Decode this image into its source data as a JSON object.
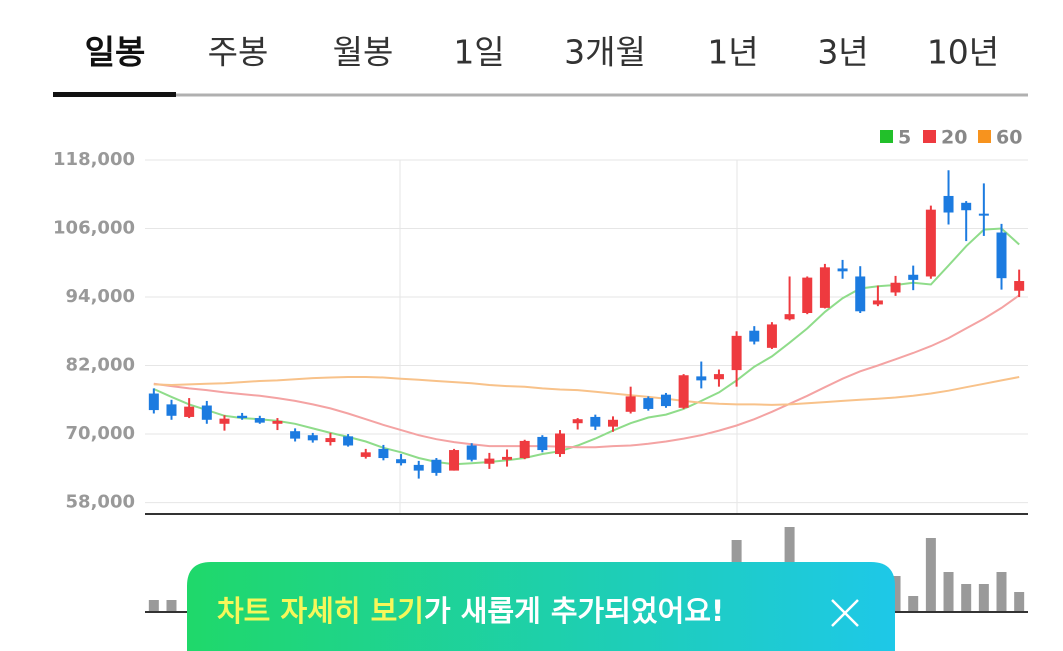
{
  "tabs": [
    "일봉",
    "주봉",
    "월봉",
    "1일",
    "3개월",
    "1년",
    "3년",
    "10년"
  ],
  "chart_data": {
    "type": "candlestick",
    "ylim": [
      56000,
      121500
    ],
    "yticks": [
      {
        "value": 118000,
        "label": "118,000"
      },
      {
        "value": 106000,
        "label": "106,000"
      },
      {
        "value": 94000,
        "label": "94,000"
      },
      {
        "value": 82000,
        "label": "82,000"
      },
      {
        "value": 70000,
        "label": "70,000"
      },
      {
        "value": 58000,
        "label": "58,000"
      }
    ],
    "grid": true,
    "legend": "top-right",
    "up_color": "#ee3a3f",
    "down_color": "#1c7be0",
    "volume_color": "#9a9a9a",
    "candles": {
      "open": [
        77100,
        75200,
        73000,
        75000,
        71800,
        73200,
        72800,
        71800,
        70500,
        69800,
        68600,
        69600,
        66000,
        67400,
        65600,
        64600,
        65500,
        63600,
        68000,
        64800,
        65500,
        65800,
        69500,
        66500,
        71900,
        73000,
        71300,
        73900,
        76300,
        76900,
        74600,
        80100,
        79600,
        81200,
        88100,
        85100,
        90100,
        91200,
        92100,
        99000,
        97600,
        92700,
        94800,
        97900,
        97600,
        111700,
        110500,
        108600,
        105300,
        95100
      ],
      "high": [
        78000,
        76000,
        76300,
        75800,
        73300,
        73700,
        73200,
        72800,
        71000,
        70200,
        70200,
        70000,
        67400,
        68100,
        66500,
        65300,
        65800,
        67400,
        68400,
        66700,
        67300,
        69000,
        69800,
        70700,
        72800,
        73400,
        73100,
        78300,
        76600,
        77200,
        80500,
        82700,
        81300,
        88000,
        88900,
        89600,
        97600,
        97600,
        99800,
        100500,
        99400,
        96000,
        97700,
        99500,
        110000,
        116200,
        110800,
        113900,
        106800,
        98800
      ],
      "low": [
        73600,
        72500,
        72800,
        71800,
        70600,
        72500,
        71800,
        70700,
        68700,
        68500,
        68000,
        67800,
        65700,
        65400,
        64500,
        62200,
        62700,
        63600,
        65200,
        63900,
        64300,
        65600,
        66800,
        66000,
        70800,
        70700,
        70400,
        73600,
        74100,
        74600,
        74400,
        78000,
        78300,
        78300,
        85700,
        84900,
        89900,
        91000,
        92000,
        97200,
        91200,
        92400,
        94200,
        95200,
        97200,
        106700,
        103800,
        104700,
        95300,
        94000
      ],
      "close": [
        74200,
        73200,
        74800,
        72500,
        72700,
        72800,
        72000,
        72300,
        69200,
        68900,
        69300,
        68000,
        66800,
        65800,
        64900,
        63600,
        63200,
        67200,
        65500,
        65700,
        66000,
        68800,
        67200,
        70100,
        72600,
        71300,
        72500,
        76600,
        74400,
        74900,
        80300,
        79400,
        80500,
        87200,
        86200,
        89200,
        91000,
        97400,
        99200,
        98500,
        91500,
        93400,
        96500,
        97000,
        109300,
        108800,
        109200,
        108600,
        97300,
        96800
      ]
    },
    "series": [
      {
        "name": "5",
        "color": "#22c02a",
        "line_color": "#8fdc8a",
        "values": [
          77900,
          76500,
          75200,
          74200,
          73200,
          72800,
          72600,
          72300,
          71800,
          71000,
          70200,
          69500,
          68700,
          67600,
          66800,
          65800,
          65100,
          64700,
          64900,
          65100,
          65400,
          65800,
          66500,
          67000,
          68000,
          69200,
          70600,
          71900,
          72900,
          73400,
          74400,
          75800,
          77300,
          79400,
          81800,
          83600,
          86000,
          88500,
          91400,
          93800,
          95500,
          95900,
          96100,
          96500,
          96200,
          99500,
          102900,
          105800,
          106000,
          103200
        ]
      },
      {
        "name": "20",
        "color": "#ee3a3f",
        "line_color": "#f4a3a3",
        "values": [
          78800,
          78400,
          78000,
          77700,
          77300,
          77000,
          76700,
          76300,
          75800,
          75200,
          74500,
          73600,
          72600,
          71600,
          70700,
          69800,
          69100,
          68600,
          68200,
          67900,
          67900,
          67900,
          67900,
          67800,
          67700,
          67700,
          67900,
          68000,
          68300,
          68700,
          69200,
          69800,
          70600,
          71500,
          72600,
          73900,
          75300,
          76700,
          78200,
          79700,
          81000,
          82000,
          83100,
          84200,
          85400,
          86800,
          88500,
          90200,
          92100,
          94300
        ]
      },
      {
        "name": "60",
        "color": "#f7931e",
        "line_color": "#f8c28a",
        "values": [
          78700,
          78600,
          78700,
          78800,
          78900,
          79100,
          79300,
          79400,
          79600,
          79800,
          79900,
          80000,
          80000,
          79900,
          79700,
          79500,
          79300,
          79100,
          78900,
          78600,
          78400,
          78300,
          78000,
          77800,
          77700,
          77400,
          77100,
          76800,
          76500,
          76200,
          75800,
          75500,
          75300,
          75200,
          75200,
          75100,
          75200,
          75400,
          75600,
          75800,
          76000,
          76200,
          76400,
          76700,
          77100,
          77600,
          78200,
          78800,
          79400,
          80000
        ]
      }
    ],
    "volume": [
      12,
      12,
      null,
      null,
      null,
      null,
      null,
      null,
      null,
      null,
      null,
      null,
      null,
      null,
      null,
      null,
      null,
      null,
      null,
      null,
      null,
      null,
      null,
      null,
      null,
      null,
      null,
      null,
      null,
      null,
      null,
      null,
      null,
      72,
      null,
      null,
      85,
      null,
      null,
      null,
      null,
      null,
      36,
      16,
      74,
      40,
      28,
      28,
      40,
      20
    ]
  },
  "banner": {
    "highlight": "차트 자세히 보기",
    "text": "가 새롭게 추가되었어요!"
  }
}
